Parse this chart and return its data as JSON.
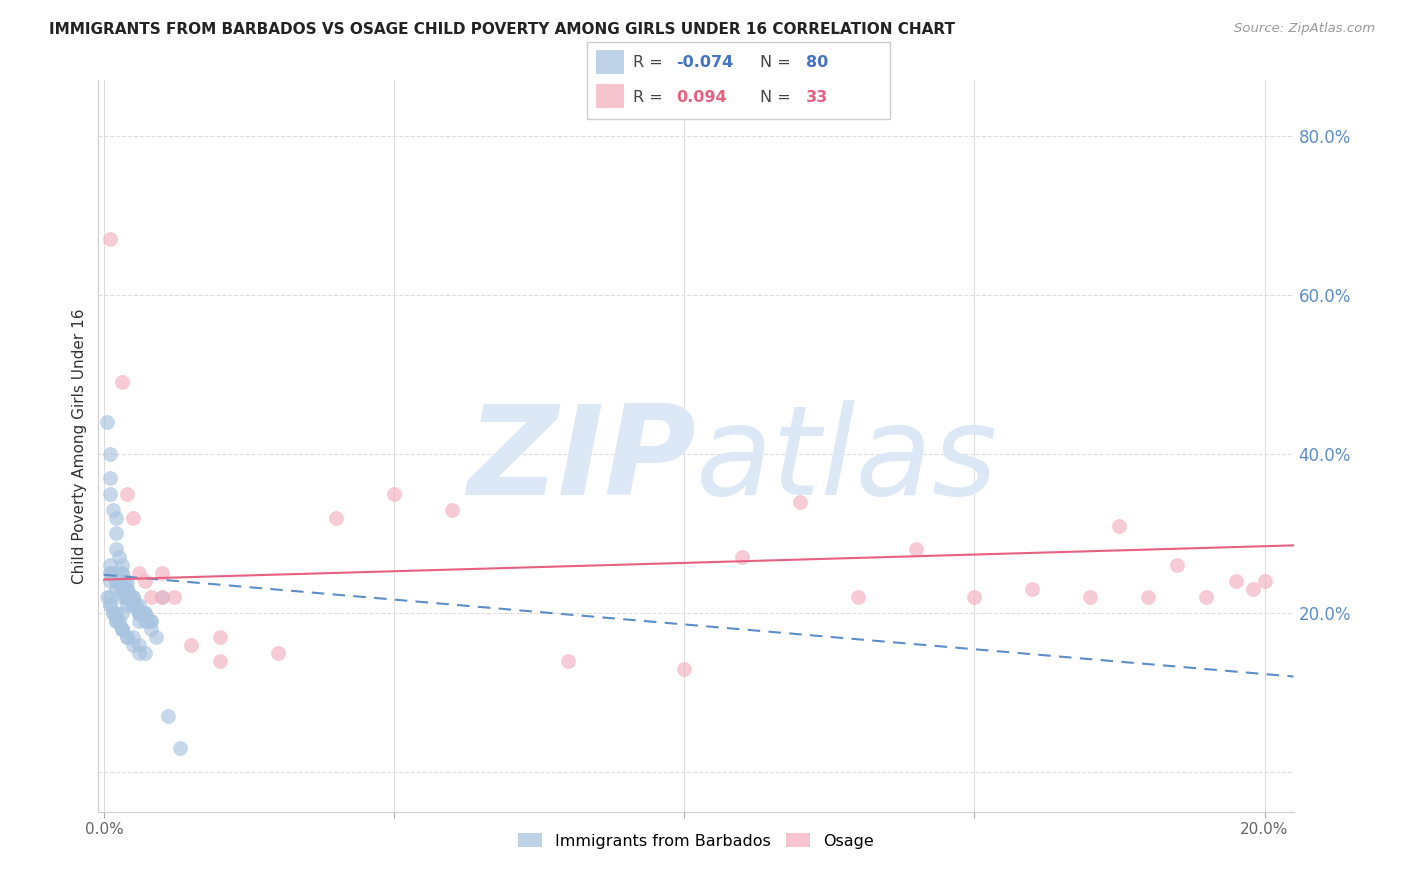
{
  "title": "IMMIGRANTS FROM BARBADOS VS OSAGE CHILD POVERTY AMONG GIRLS UNDER 16 CORRELATION CHART",
  "source": "Source: ZipAtlas.com",
  "ylabel": "Child Poverty Among Girls Under 16",
  "yticks_right": [
    0.0,
    0.2,
    0.4,
    0.6,
    0.8
  ],
  "ytick_labels_right": [
    "",
    "20.0%",
    "40.0%",
    "60.0%",
    "80.0%"
  ],
  "xlim": [
    -0.001,
    0.205
  ],
  "ylim": [
    -0.05,
    0.87
  ],
  "blue_R": -0.074,
  "blue_N": 80,
  "pink_R": 0.094,
  "pink_N": 33,
  "blue_color": "#a8c4e0",
  "pink_color": "#f4b0c0",
  "blue_line_color": "#5b8dc8",
  "pink_line_color": "#e86080",
  "watermark_zip": "ZIP",
  "watermark_atlas": "atlas",
  "watermark_color": "#dce8f5",
  "blue_scatter_x": [
    0.0005,
    0.001,
    0.001,
    0.001,
    0.0015,
    0.002,
    0.002,
    0.002,
    0.0025,
    0.003,
    0.003,
    0.003,
    0.0035,
    0.004,
    0.004,
    0.004,
    0.0045,
    0.005,
    0.005,
    0.005,
    0.0055,
    0.006,
    0.006,
    0.006,
    0.0065,
    0.007,
    0.007,
    0.0075,
    0.008,
    0.008,
    0.001,
    0.001,
    0.0015,
    0.002,
    0.0025,
    0.003,
    0.003,
    0.0035,
    0.004,
    0.004,
    0.0005,
    0.001,
    0.001,
    0.001,
    0.0015,
    0.0015,
    0.002,
    0.002,
    0.002,
    0.0025,
    0.003,
    0.003,
    0.003,
    0.004,
    0.004,
    0.005,
    0.005,
    0.006,
    0.006,
    0.007,
    0.001,
    0.001,
    0.002,
    0.002,
    0.003,
    0.003,
    0.004,
    0.005,
    0.006,
    0.006,
    0.003,
    0.004,
    0.005,
    0.006,
    0.007,
    0.008,
    0.009,
    0.01,
    0.011,
    0.013
  ],
  "blue_scatter_y": [
    0.44,
    0.4,
    0.37,
    0.35,
    0.33,
    0.32,
    0.3,
    0.28,
    0.27,
    0.26,
    0.25,
    0.25,
    0.24,
    0.24,
    0.23,
    0.23,
    0.22,
    0.22,
    0.22,
    0.21,
    0.21,
    0.21,
    0.2,
    0.2,
    0.2,
    0.2,
    0.19,
    0.19,
    0.19,
    0.18,
    0.26,
    0.25,
    0.25,
    0.24,
    0.24,
    0.23,
    0.23,
    0.22,
    0.22,
    0.21,
    0.22,
    0.22,
    0.21,
    0.21,
    0.2,
    0.2,
    0.2,
    0.19,
    0.19,
    0.19,
    0.18,
    0.18,
    0.18,
    0.17,
    0.17,
    0.17,
    0.16,
    0.16,
    0.15,
    0.15,
    0.25,
    0.24,
    0.24,
    0.23,
    0.23,
    0.22,
    0.22,
    0.21,
    0.2,
    0.2,
    0.2,
    0.22,
    0.21,
    0.19,
    0.2,
    0.19,
    0.17,
    0.22,
    0.07,
    0.03
  ],
  "pink_scatter_x": [
    0.001,
    0.003,
    0.004,
    0.005,
    0.006,
    0.007,
    0.008,
    0.01,
    0.012,
    0.015,
    0.02,
    0.03,
    0.04,
    0.05,
    0.06,
    0.08,
    0.1,
    0.11,
    0.12,
    0.13,
    0.14,
    0.15,
    0.16,
    0.17,
    0.175,
    0.18,
    0.185,
    0.19,
    0.195,
    0.198,
    0.2,
    0.01,
    0.02
  ],
  "pink_scatter_y": [
    0.67,
    0.49,
    0.35,
    0.32,
    0.25,
    0.24,
    0.22,
    0.22,
    0.22,
    0.16,
    0.14,
    0.15,
    0.32,
    0.35,
    0.33,
    0.14,
    0.13,
    0.27,
    0.34,
    0.22,
    0.28,
    0.22,
    0.23,
    0.22,
    0.31,
    0.22,
    0.26,
    0.22,
    0.24,
    0.23,
    0.24,
    0.25,
    0.17
  ],
  "blue_trend_x": [
    0.0,
    0.205
  ],
  "blue_trend_y": [
    0.248,
    0.12
  ],
  "pink_trend_x": [
    0.0,
    0.205
  ],
  "pink_trend_y": [
    0.242,
    0.285
  ]
}
